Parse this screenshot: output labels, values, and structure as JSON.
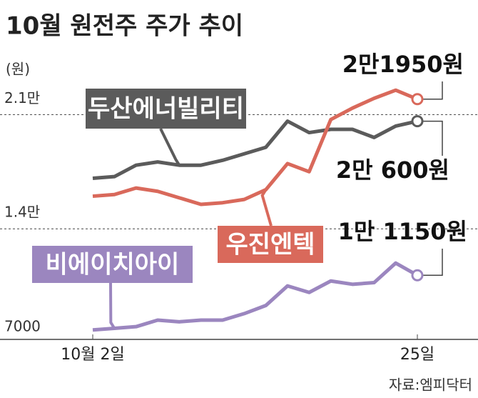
{
  "chart_data": {
    "type": "line",
    "title": "10월 원전주 주가 추이",
    "y_label": "(원)",
    "source": "자료:엠피닥터",
    "categories": [
      "10월 2일",
      null,
      null,
      null,
      null,
      null,
      null,
      null,
      null,
      null,
      null,
      null,
      null,
      null,
      null,
      "25일"
    ],
    "ylim": [
      7000,
      25400
    ],
    "yticks": [
      {
        "value": 21000,
        "label": "2.1만"
      },
      {
        "value": 14000,
        "label": "1.4만"
      },
      7000
    ],
    "grid": true,
    "series": [
      {
        "name": "두산에너빌리티",
        "color": "#5b5b5b",
        "values": [
          17100,
          17200,
          17900,
          18100,
          17900,
          17900,
          18200,
          18600,
          19000,
          20600,
          19900,
          20100,
          20100,
          19600,
          20300,
          20600
        ],
        "value_labels": [
          null,
          null,
          null,
          null,
          null,
          null,
          null,
          null,
          null,
          null,
          null,
          null,
          null,
          null,
          null,
          "2만 600원"
        ]
      },
      {
        "name": "우진엔텍",
        "color": "#d9695b",
        "values": [
          16000,
          16100,
          16500,
          16300,
          15900,
          15500,
          15600,
          15800,
          16400,
          18000,
          17500,
          20700,
          21400,
          22000,
          22500,
          21950
        ],
        "value_labels": [
          null,
          null,
          null,
          null,
          null,
          null,
          null,
          null,
          null,
          null,
          null,
          null,
          null,
          null,
          null,
          "2만1950원"
        ]
      },
      {
        "name": "비에이치아이",
        "color": "#9b86bf",
        "values": [
          7800,
          7900,
          8000,
          8400,
          8300,
          8400,
          8400,
          8800,
          9300,
          10500,
          10100,
          10800,
          10600,
          10700,
          11900,
          11150
        ],
        "value_labels": [
          null,
          null,
          null,
          null,
          null,
          null,
          null,
          null,
          null,
          null,
          null,
          null,
          null,
          null,
          null,
          "1만 1150원"
        ]
      }
    ]
  }
}
